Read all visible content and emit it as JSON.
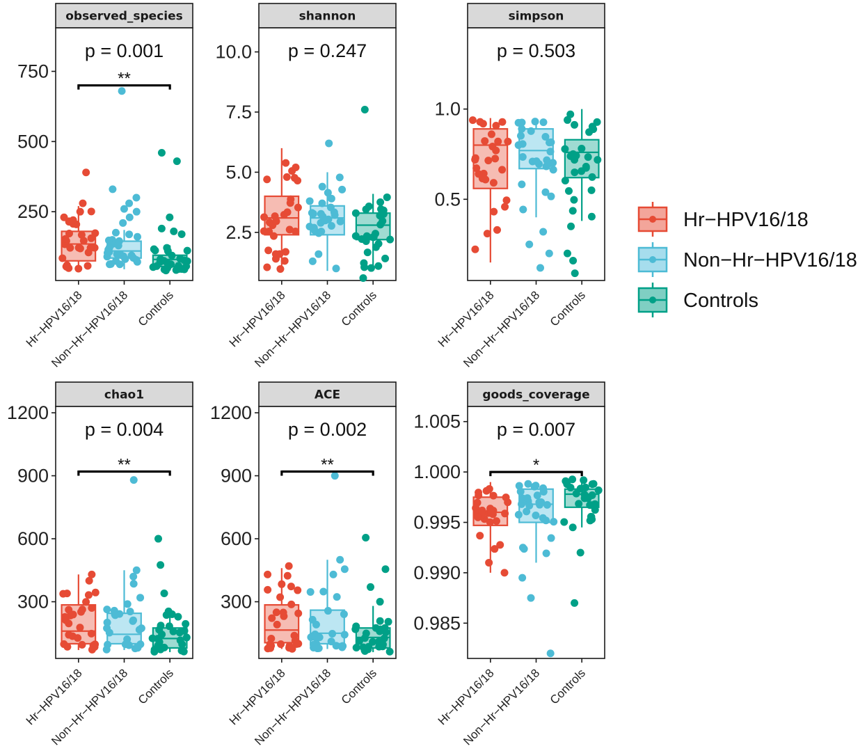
{
  "legend": {
    "items": [
      {
        "label": "Hr−HPV16/18",
        "color": "#e64b35",
        "fill": "#f3a59a"
      },
      {
        "label": "Non−Hr−HPV16/18",
        "color": "#4dbbd5",
        "fill": "#a6dded"
      },
      {
        "label": "Controls",
        "color": "#00a087",
        "fill": "#7fcfc3"
      }
    ]
  },
  "chart_data": [
    {
      "type": "box",
      "title": "observed_species",
      "categories": [
        "Hr−HPV16/18",
        "Non−Hr−HPV16/18",
        "Controls"
      ],
      "p_text": "p = 0.001",
      "ylim": [
        5,
        905
      ],
      "yticks": [
        250,
        500,
        750
      ],
      "tick_labels": [
        "250",
        "500",
        "750"
      ],
      "boxes": [
        {
          "q1": 75,
          "median": 135,
          "q3": 180,
          "wlo": 45,
          "whi": 270
        },
        {
          "q1": 85,
          "median": 110,
          "q3": 145,
          "wlo": 45,
          "whi": 185
        },
        {
          "q1": 55,
          "median": 80,
          "q3": 95,
          "wlo": 40,
          "whi": 130
        }
      ],
      "outliers": [
        [
          390,
          280,
          250,
          230,
          220
        ],
        [
          680,
          330,
          300,
          280,
          260,
          250,
          230,
          210
        ],
        [
          460,
          430,
          230,
          190,
          180,
          170
        ]
      ],
      "significance": {
        "from": 0,
        "to": 2,
        "label": "**",
        "y": 700
      }
    },
    {
      "type": "box",
      "title": "shannon",
      "categories": [
        "Hr−HPV16/18",
        "Non−Hr−HPV16/18",
        "Controls"
      ],
      "p_text": "p = 0.247",
      "ylim": [
        0.5,
        11.0
      ],
      "yticks": [
        2.5,
        5.0,
        7.5,
        10.0
      ],
      "tick_labels": [
        "2.5",
        "5.0",
        "7.5",
        "10.0"
      ],
      "boxes": [
        {
          "q1": 2.4,
          "median": 3.1,
          "q3": 4.0,
          "wlo": 0.9,
          "whi": 6.0
        },
        {
          "q1": 2.4,
          "median": 3.1,
          "q3": 3.6,
          "wlo": 0.9,
          "whi": 5.0
        },
        {
          "q1": 2.2,
          "median": 2.8,
          "q3": 3.3,
          "wlo": 0.9,
          "whi": 4.1
        }
      ],
      "outliers": [
        [
          1.6,
          1.6,
          4.8,
          5.2
        ],
        [
          6.2,
          1.3,
          1.0
        ],
        [
          7.6,
          0.6,
          1.1
        ]
      ],
      "significance": null
    },
    {
      "type": "box",
      "title": "simpson",
      "categories": [
        "Hr−HPV16/18",
        "Non−Hr−HPV16/18",
        "Controls"
      ],
      "p_text": "p = 0.503",
      "ylim": [
        0.05,
        1.45
      ],
      "yticks": [
        0.5,
        1.0
      ],
      "tick_labels": [
        "0.5",
        "1.0"
      ],
      "boxes": [
        {
          "q1": 0.56,
          "median": 0.8,
          "q3": 0.89,
          "wlo": 0.15,
          "whi": 0.95
        },
        {
          "q1": 0.67,
          "median": 0.77,
          "q3": 0.89,
          "wlo": 0.4,
          "whi": 0.95
        },
        {
          "q1": 0.62,
          "median": 0.76,
          "q3": 0.83,
          "wlo": 0.38,
          "whi": 1.0
        }
      ],
      "outliers": [
        [
          0.33,
          0.31
        ],
        [
          0.32,
          0.25,
          0.2,
          0.12
        ],
        [
          0.35,
          0.2,
          0.16,
          0.09
        ]
      ],
      "significance": null
    },
    {
      "type": "box",
      "title": "chao1",
      "categories": [
        "Hr−HPV16/18",
        "Non−Hr−HPV16/18",
        "Controls"
      ],
      "p_text": "p = 0.004",
      "ylim": [
        30,
        1230
      ],
      "yticks": [
        300,
        600,
        900,
        1200
      ],
      "tick_labels": [
        "300",
        "600",
        "900",
        "1200"
      ],
      "boxes": [
        {
          "q1": 100,
          "median": 160,
          "q3": 285,
          "wlo": 70,
          "whi": 430
        },
        {
          "q1": 100,
          "median": 145,
          "q3": 245,
          "wlo": 70,
          "whi": 450
        },
        {
          "q1": 80,
          "median": 125,
          "q3": 175,
          "wlo": 60,
          "whi": 270
        }
      ],
      "outliers": [
        [
          430,
          400
        ],
        [
          880,
          450,
          420
        ],
        [
          600,
          475,
          340
        ]
      ],
      "significance": {
        "from": 0,
        "to": 2,
        "label": "**",
        "y": 920
      }
    },
    {
      "type": "box",
      "title": "ACE",
      "categories": [
        "Hr−HPV16/18",
        "Non−Hr−HPV16/18",
        "Controls"
      ],
      "p_text": "p = 0.002",
      "ylim": [
        30,
        1230
      ],
      "yticks": [
        300,
        600,
        900,
        1200
      ],
      "tick_labels": [
        "300",
        "600",
        "900",
        "1200"
      ],
      "boxes": [
        {
          "q1": 105,
          "median": 165,
          "q3": 285,
          "wlo": 75,
          "whi": 460
        },
        {
          "q1": 100,
          "median": 150,
          "q3": 260,
          "wlo": 75,
          "whi": 500
        },
        {
          "q1": 80,
          "median": 130,
          "q3": 175,
          "wlo": 60,
          "whi": 280
        }
      ],
      "outliers": [
        [
          470,
          430
        ],
        [
          900,
          500,
          430
        ],
        [
          605,
          455,
          370,
          300
        ]
      ],
      "significance": {
        "from": 0,
        "to": 2,
        "label": "**",
        "y": 920
      }
    },
    {
      "type": "box",
      "title": "goods_coverage",
      "categories": [
        "Hr−HPV16/18",
        "Non−Hr−HPV16/18",
        "Controls"
      ],
      "p_text": "p = 0.007",
      "ylim": [
        0.9815,
        1.0065
      ],
      "yticks": [
        0.985,
        0.99,
        0.995,
        1.0,
        1.005
      ],
      "tick_labels": [
        "0.985",
        "0.990",
        "0.995",
        "1.000",
        "1.005"
      ],
      "boxes": [
        {
          "q1": 0.9947,
          "median": 0.996,
          "q3": 0.9975,
          "wlo": 0.99,
          "whi": 0.999
        },
        {
          "q1": 0.995,
          "median": 0.9968,
          "q3": 0.9983,
          "wlo": 0.991,
          "whi": 0.999
        },
        {
          "q1": 0.9965,
          "median": 0.9978,
          "q3": 0.9983,
          "wlo": 0.9945,
          "whi": 0.9995
        }
      ],
      "outliers": [
        [
          0.99,
          0.991
        ],
        [
          0.982,
          0.9875,
          0.9895,
          0.9925
        ],
        [
          0.987,
          0.992,
          0.9945
        ]
      ],
      "significance": {
        "from": 0,
        "to": 2,
        "label": "*",
        "y": 1.0
      }
    }
  ]
}
